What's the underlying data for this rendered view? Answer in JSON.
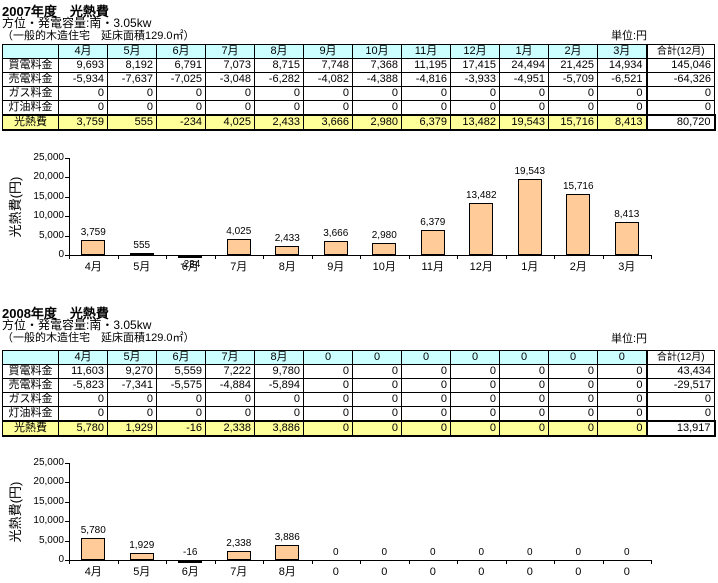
{
  "colors": {
    "header_bg": "#CCFFFF",
    "highlight_bg": "#FFFF99",
    "bar_fill": "#FFCC99",
    "bar_border": "#000000",
    "text": "#000000"
  },
  "sections": [
    {
      "title": "2007年度　光熱費",
      "subtitle": "方位・発電容量:南・3.05kw",
      "note": "（一般的木造住宅　延床面積129.0㎡）",
      "unit_label": "単位:円",
      "table": {
        "corner_header": "",
        "month_headers": [
          "4月",
          "5月",
          "6月",
          "7月",
          "8月",
          "9月",
          "10月",
          "11月",
          "12月",
          "1月",
          "2月",
          "3月"
        ],
        "total_header": "合計(12月)",
        "rows": [
          {
            "label": "買電料金",
            "values": [
              "9,693",
              "8,192",
              "6,791",
              "7,073",
              "8,715",
              "7,748",
              "7,368",
              "11,195",
              "17,415",
              "24,494",
              "21,425",
              "14,934"
            ],
            "total": "145,046",
            "highlight": false
          },
          {
            "label": "売電料金",
            "values": [
              "-5,934",
              "-7,637",
              "-7,025",
              "-3,048",
              "-6,282",
              "-4,082",
              "-4,388",
              "-4,816",
              "-3,933",
              "-4,951",
              "-5,709",
              "-6,521"
            ],
            "total": "-64,326",
            "highlight": false
          },
          {
            "label": "ガス料金",
            "values": [
              "0",
              "0",
              "0",
              "0",
              "0",
              "0",
              "0",
              "0",
              "0",
              "0",
              "0",
              "0"
            ],
            "total": "0",
            "highlight": false
          },
          {
            "label": "灯油料金",
            "values": [
              "0",
              "0",
              "0",
              "0",
              "0",
              "0",
              "0",
              "0",
              "0",
              "0",
              "0",
              "0"
            ],
            "total": "0",
            "highlight": false
          },
          {
            "label": "光熱費",
            "values": [
              "3,759",
              "555",
              "-234",
              "4,025",
              "2,433",
              "3,666",
              "2,980",
              "6,379",
              "13,482",
              "19,543",
              "15,716",
              "8,413"
            ],
            "total": "80,720",
            "highlight": true
          }
        ]
      }
    },
    {
      "title": "2008年度　光熱費",
      "subtitle": "方位・発電容量:南・3.05kw",
      "note": "（一般的木造住宅　延床面積129.0㎡）",
      "unit_label": "単位:円",
      "table": {
        "corner_header": "",
        "month_headers": [
          "4月",
          "5月",
          "6月",
          "7月",
          "8月",
          "0",
          "0",
          "0",
          "0",
          "0",
          "0",
          "0"
        ],
        "total_header": "合計(12月)",
        "rows": [
          {
            "label": "買電料金",
            "values": [
              "11,603",
              "9,270",
              "5,559",
              "7,222",
              "9,780",
              "0",
              "0",
              "0",
              "0",
              "0",
              "0",
              "0"
            ],
            "total": "43,434",
            "highlight": false
          },
          {
            "label": "売電料金",
            "values": [
              "-5,823",
              "-7,341",
              "-5,575",
              "-4,884",
              "-5,894",
              "0",
              "0",
              "0",
              "0",
              "0",
              "0",
              "0"
            ],
            "total": "-29,517",
            "highlight": false
          },
          {
            "label": "ガス料金",
            "values": [
              "0",
              "0",
              "0",
              "0",
              "0",
              "0",
              "0",
              "0",
              "0",
              "0",
              "0",
              "0"
            ],
            "total": "0",
            "highlight": false
          },
          {
            "label": "灯油料金",
            "values": [
              "0",
              "0",
              "0",
              "0",
              "0",
              "0",
              "0",
              "0",
              "0",
              "0",
              "0",
              "0"
            ],
            "total": "0",
            "highlight": false
          },
          {
            "label": "光熱費",
            "values": [
              "5,780",
              "1,929",
              "-16",
              "2,338",
              "3,886",
              "0",
              "0",
              "0",
              "0",
              "0",
              "0",
              "0"
            ],
            "total": "13,917",
            "highlight": true
          }
        ]
      }
    }
  ],
  "chart_data": [
    {
      "type": "bar",
      "title": "",
      "xlabel": "",
      "ylabel": "光熱費(円)",
      "categories": [
        "4月",
        "5月",
        "6月",
        "7月",
        "8月",
        "9月",
        "10月",
        "11月",
        "12月",
        "1月",
        "2月",
        "3月"
      ],
      "values": [
        3759,
        555,
        -234,
        4025,
        2433,
        3666,
        2980,
        6379,
        13482,
        19543,
        15716,
        8413
      ],
      "value_labels": [
        "3,759",
        "555",
        "-234",
        "4,025",
        "2,433",
        "3,666",
        "2,980",
        "6,379",
        "13,482",
        "19,543",
        "15,716",
        "8,413"
      ],
      "ylim": [
        0,
        25000
      ],
      "ytick_step": 5000,
      "ytick_labels": [
        "0",
        "5,000",
        "10,000",
        "15,000",
        "20,000",
        "25,000"
      ],
      "grid": false,
      "legend": "none",
      "bar_color": "#FFCC99",
      "neg_label_below_axis": true
    },
    {
      "type": "bar",
      "title": "",
      "xlabel": "",
      "ylabel": "光熱費(円)",
      "categories": [
        "4月",
        "5月",
        "6月",
        "7月",
        "8月",
        "0",
        "0",
        "0",
        "0",
        "0",
        "0",
        "0"
      ],
      "values": [
        5780,
        1929,
        -16,
        2338,
        3886,
        0,
        0,
        0,
        0,
        0,
        0,
        0
      ],
      "value_labels": [
        "5,780",
        "1,929",
        "-16",
        "2,338",
        "3,886",
        "0",
        "0",
        "0",
        "0",
        "0",
        "0",
        "0"
      ],
      "ylim": [
        0,
        25000
      ],
      "ytick_step": 5000,
      "ytick_labels": [
        "0",
        "5,000",
        "10,000",
        "15,000",
        "20,000",
        "25,000"
      ],
      "grid": false,
      "legend": "none",
      "bar_color": "#FFCC99",
      "neg_label_below_axis": false
    }
  ]
}
